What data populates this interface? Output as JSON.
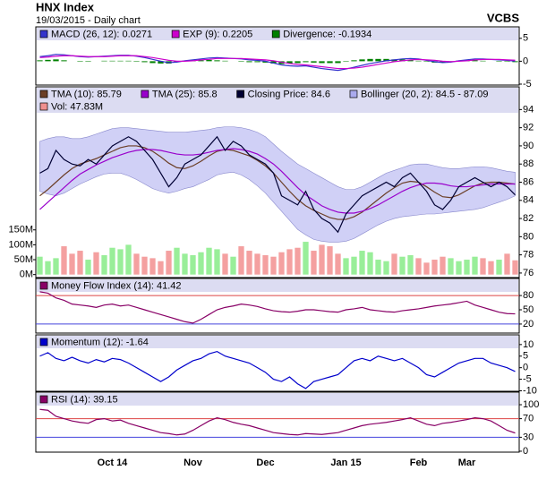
{
  "header": {
    "title": "HNX Index",
    "subtitle": "19/03/2015 - Daily chart",
    "source": "VCBS"
  },
  "chart_data": [
    {
      "type": "line",
      "ylim": [
        -5.2,
        7.5
      ],
      "yticks": [
        5,
        0,
        -5
      ],
      "series": [
        {
          "name": "MACD (26, 12): 0.0271",
          "color": "#3333cc",
          "values": [
            1,
            1.2,
            1.5,
            1.4,
            1.2,
            1,
            0.9,
            1,
            1.1,
            1.2,
            1.3,
            1.3,
            1.1,
            0.8,
            0.4,
            0,
            -0.3,
            -0.2,
            0.1,
            0.3,
            0.5,
            0.7,
            0.8,
            0.7,
            0.6,
            0.5,
            0.3,
            0.2,
            0,
            -0.4,
            -0.8,
            -1,
            -1.1,
            -1,
            -1.3,
            -1.6,
            -1.8,
            -2,
            -1.7,
            -1.3,
            -0.9,
            -0.5,
            -0.2,
            0.1,
            0.3,
            0.5,
            0.6,
            0.5,
            0.2,
            -0.1,
            -0.3,
            -0.2,
            0.1,
            0.3,
            0.5,
            0.5,
            0.4,
            0.3,
            0.2,
            0.0271
          ]
        },
        {
          "name": "EXP (9): 0.2205",
          "color": "#cc00cc",
          "values": [
            0.8,
            0.9,
            1.1,
            1.2,
            1.2,
            1.1,
            1,
            1,
            1,
            1.1,
            1.2,
            1.2,
            1.2,
            1,
            0.8,
            0.5,
            0.2,
            0,
            0,
            0.1,
            0.3,
            0.4,
            0.6,
            0.6,
            0.6,
            0.6,
            0.5,
            0.4,
            0.3,
            0.1,
            -0.2,
            -0.5,
            -0.7,
            -0.8,
            -1,
            -1.2,
            -1.4,
            -1.6,
            -1.6,
            -1.5,
            -1.3,
            -1,
            -0.7,
            -0.4,
            -0.1,
            0.1,
            0.3,
            0.4,
            0.3,
            0.2,
            0,
            -0.1,
            0,
            0.1,
            0.3,
            0.4,
            0.4,
            0.4,
            0.3,
            0.2205
          ]
        },
        {
          "name": "Divergence: -0.1934",
          "color": "#008000",
          "type": "bar",
          "values": [
            0.2,
            0.3,
            0.4,
            0.2,
            0,
            -0.1,
            -0.1,
            0,
            0.1,
            0.1,
            0.1,
            0.1,
            -0.1,
            -0.2,
            -0.4,
            -0.5,
            -0.5,
            -0.2,
            0.1,
            0.2,
            0.2,
            0.3,
            0.2,
            0.1,
            0,
            -0.1,
            -0.2,
            -0.2,
            -0.3,
            -0.5,
            -0.6,
            -0.5,
            -0.4,
            -0.2,
            -0.3,
            -0.4,
            -0.4,
            -0.4,
            -0.1,
            0.2,
            0.4,
            0.5,
            0.5,
            0.5,
            0.4,
            0.4,
            0.3,
            0.1,
            -0.1,
            -0.3,
            -0.3,
            -0.1,
            0.1,
            0.2,
            0.2,
            0.1,
            0,
            -0.1,
            -0.1,
            -0.1934
          ]
        }
      ]
    },
    {
      "type": "line",
      "ylim": [
        75.5,
        96.5
      ],
      "yticks": [
        76,
        78,
        80,
        82,
        84,
        86,
        88,
        90,
        92,
        94
      ],
      "y2lim": [
        -10,
        630
      ],
      "y2ticks": [
        {
          "value": 0,
          "label": "0M"
        },
        {
          "value": 50,
          "label": "50M"
        },
        {
          "value": 100,
          "label": "100M"
        },
        {
          "value": 150,
          "label": "150M"
        }
      ],
      "series": [
        {
          "name": "TMA (10): 85.79",
          "color": "#6b3e26",
          "values": [
            84.5,
            85.2,
            86,
            86.8,
            87.5,
            88,
            88.3,
            88.6,
            89,
            89.4,
            89.8,
            90,
            90,
            89.8,
            89.4,
            88.8,
            88.1,
            87.6,
            87.5,
            87.8,
            88.3,
            88.9,
            89.4,
            89.6,
            89.5,
            89.2,
            88.9,
            88.4,
            87.8,
            87,
            86,
            85,
            84.1,
            83.4,
            82.9,
            82.5,
            82.1,
            81.9,
            81.9,
            82.2,
            82.7,
            83.4,
            84.1,
            84.8,
            85.4,
            85.9,
            86.1,
            86,
            85.5,
            84.9,
            84.4,
            84.3,
            84.6,
            85.1,
            85.6,
            85.9,
            86,
            86,
            85.9,
            85.79
          ]
        },
        {
          "name": "TMA (25): 85.8",
          "color": "#9900cc",
          "values": [
            83,
            83.8,
            84.6,
            85.4,
            86.2,
            86.9,
            87.4,
            87.9,
            88.3,
            88.7,
            89,
            89.3,
            89.5,
            89.6,
            89.6,
            89.5,
            89.3,
            89.1,
            89,
            89,
            89.1,
            89.3,
            89.5,
            89.6,
            89.7,
            89.6,
            89.4,
            89.1,
            88.6,
            88,
            87.2,
            86.3,
            85.4,
            84.6,
            84,
            83.4,
            83,
            82.7,
            82.6,
            82.6,
            82.8,
            83.1,
            83.5,
            84,
            84.5,
            85,
            85.4,
            85.7,
            85.9,
            85.9,
            85.8,
            85.6,
            85.5,
            85.5,
            85.6,
            85.7,
            85.8,
            85.8,
            85.8,
            85.8
          ]
        },
        {
          "name": "Closing Price: 84.6",
          "color": "#000033",
          "values": [
            87,
            87.5,
            89.5,
            88.5,
            88,
            87.8,
            88.5,
            88,
            89,
            90,
            90.5,
            91,
            90.5,
            89.5,
            88.5,
            87,
            85.5,
            86.5,
            88,
            88.5,
            89,
            90,
            91,
            89.5,
            90.5,
            90,
            89,
            88.5,
            88,
            87,
            84.5,
            84,
            83.5,
            85,
            83,
            82,
            81.5,
            80.5,
            82.5,
            83.5,
            84.5,
            85,
            85.5,
            86,
            85.5,
            86.5,
            87,
            86,
            85,
            83.5,
            83,
            84,
            85.5,
            86,
            86.5,
            86,
            85.5,
            86,
            85.5,
            84.6
          ]
        },
        {
          "name": "Bollinger (20, 2): 84.5 - 87.09",
          "color": "#aaaaee",
          "type": "band",
          "upper": [
            90.5,
            90.8,
            91,
            91,
            90.8,
            90.8,
            91,
            91.3,
            91.6,
            91.9,
            92,
            92,
            91.9,
            91.8,
            91.7,
            91.6,
            91.5,
            91.5,
            91.5,
            91.6,
            91.7,
            91.8,
            92,
            92.1,
            92.1,
            92,
            91.8,
            91.5,
            91,
            90.2,
            89.4,
            88.7,
            88,
            87.5,
            87,
            86.5,
            86,
            85.5,
            85.2,
            85.2,
            85.5,
            86,
            86.5,
            87,
            87.3,
            87.6,
            87.9,
            88,
            88,
            87.8,
            87.6,
            87.5,
            87.5,
            87.6,
            87.7,
            87.7,
            87.6,
            87.4,
            87.2,
            87.09
          ],
          "lower": [
            85,
            84.7,
            84.5,
            84.8,
            85.3,
            85.8,
            86.2,
            86.6,
            86.9,
            87,
            87,
            86.7,
            86.3,
            85.8,
            85.3,
            85,
            84.8,
            85,
            85.3,
            85.5,
            85.9,
            86.3,
            86.8,
            87,
            87.1,
            86.8,
            86.3,
            85.6,
            84.8,
            83.8,
            82.8,
            81.8,
            80.8,
            80.2,
            79.7,
            79.5,
            79.4,
            79.4,
            79.5,
            79.8,
            80.3,
            80.8,
            81.3,
            81.7,
            82,
            82.2,
            82.3,
            82.4,
            82.5,
            82.5,
            82.6,
            82.7,
            82.8,
            82.9,
            83,
            83.2,
            83.5,
            83.8,
            84.1,
            84.5
          ]
        },
        {
          "name": "Vol: 47.83M",
          "color": "#f09090",
          "type": "bar",
          "axis": "y2",
          "up_color": "#99ee99",
          "down_color": "#f4a0a0",
          "values": [
            60,
            45,
            55,
            95,
            70,
            80,
            50,
            75,
            65,
            90,
            85,
            100,
            70,
            60,
            55,
            45,
            80,
            90,
            70,
            65,
            75,
            90,
            85,
            70,
            60,
            95,
            80,
            70,
            65,
            60,
            75,
            85,
            90,
            110,
            80,
            100,
            95,
            70,
            55,
            60,
            80,
            75,
            50,
            45,
            70,
            60,
            65,
            55,
            40,
            50,
            60,
            55,
            45,
            50,
            60,
            55,
            45,
            50,
            70,
            47.83
          ]
        }
      ]
    },
    {
      "type": "line",
      "ylim": [
        1,
        116
      ],
      "yticks": [
        80,
        50,
        20
      ],
      "hlines": [
        {
          "value": 80,
          "color": "#dd4444"
        },
        {
          "value": 20,
          "color": "#4444dd"
        }
      ],
      "series": [
        {
          "name": "Money Flow Index (14): 41.42",
          "color": "#880066",
          "values": [
            88,
            85,
            75,
            70,
            62,
            60,
            58,
            55,
            60,
            62,
            58,
            60,
            55,
            50,
            45,
            40,
            35,
            30,
            25,
            22,
            30,
            40,
            50,
            55,
            58,
            62,
            60,
            57,
            52,
            48,
            46,
            45,
            47,
            50,
            50,
            48,
            46,
            45,
            50,
            52,
            55,
            50,
            48,
            46,
            45,
            48,
            50,
            52,
            55,
            58,
            60,
            62,
            65,
            68,
            60,
            55,
            50,
            45,
            42,
            41.42
          ]
        }
      ]
    },
    {
      "type": "line",
      "ylim": [
        -10.2,
        14.2
      ],
      "yticks": [
        10,
        5,
        0,
        -5,
        -10
      ],
      "series": [
        {
          "name": "Momentum (12): -1.64",
          "color": "#0000cc",
          "values": [
            5,
            6.5,
            4,
            3,
            4.5,
            3,
            2,
            3.5,
            2.5,
            4,
            3.5,
            2,
            0,
            -2,
            -4,
            -6,
            -4,
            -1,
            1,
            3,
            4,
            6,
            7,
            5,
            4,
            3,
            2,
            0,
            -2,
            -5,
            -6,
            -4,
            -7,
            -9,
            -6,
            -5,
            -4,
            -3,
            0,
            3,
            4,
            3,
            5,
            4,
            3,
            4,
            2,
            0,
            -3,
            -4,
            -2,
            0,
            2,
            3,
            4,
            4,
            2,
            1,
            0,
            -1.64
          ]
        }
      ]
    },
    {
      "type": "line",
      "ylim": [
        -2,
        127
      ],
      "yticks": [
        100,
        70,
        30,
        0
      ],
      "hlines": [
        {
          "value": 70,
          "color": "#dd4444"
        },
        {
          "value": 30,
          "color": "#4444dd"
        }
      ],
      "categories": [
        null,
        null,
        null,
        null,
        null,
        null,
        null,
        null,
        null,
        "Oct 14",
        null,
        null,
        null,
        null,
        null,
        null,
        null,
        null,
        null,
        "Nov",
        null,
        null,
        null,
        null,
        null,
        null,
        null,
        null,
        "Dec",
        null,
        null,
        null,
        null,
        null,
        null,
        null,
        null,
        null,
        "Jan 15",
        null,
        null,
        null,
        null,
        null,
        null,
        null,
        null,
        "Feb",
        null,
        null,
        null,
        null,
        null,
        "Mar",
        null,
        null,
        null,
        null,
        null,
        null
      ],
      "series": [
        {
          "name": "RSI (14): 39.15",
          "color": "#880066",
          "values": [
            90,
            88,
            75,
            70,
            65,
            62,
            60,
            68,
            70,
            65,
            67,
            60,
            55,
            50,
            45,
            40,
            38,
            35,
            37,
            45,
            55,
            65,
            72,
            68,
            62,
            58,
            55,
            50,
            45,
            40,
            38,
            36,
            35,
            38,
            37,
            36,
            38,
            40,
            45,
            50,
            55,
            58,
            60,
            62,
            65,
            68,
            72,
            65,
            58,
            55,
            60,
            62,
            65,
            68,
            72,
            70,
            65,
            55,
            45,
            39.15
          ]
        }
      ]
    }
  ]
}
